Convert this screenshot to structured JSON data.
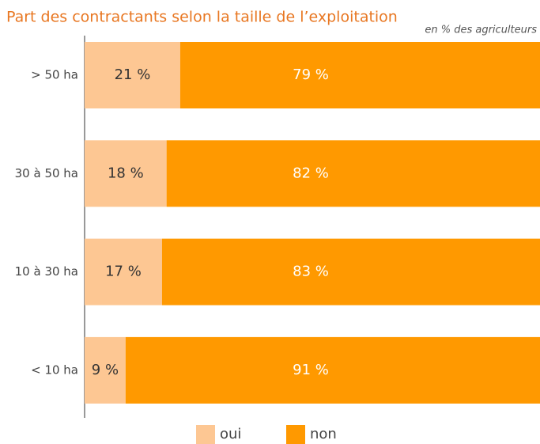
{
  "chart_data": {
    "type": "stacked-barh",
    "title": "Part des contractants selon la taille de l’exploitation",
    "subtitle": "en % des agriculteurs",
    "categories": [
      "> 50 ha",
      "30 à 50 ha",
      "10 à 30 ha",
      "< 10 ha"
    ],
    "xlim": [
      0,
      100
    ],
    "legend": "bottom",
    "series": [
      {
        "name": "oui",
        "color": "#fdc793",
        "values": [
          21,
          18,
          17,
          9
        ],
        "value_labels": [
          "21 %",
          "18 %",
          "17 %",
          "9 %"
        ]
      },
      {
        "name": "non",
        "color": "#ff9900",
        "values": [
          79,
          82,
          83,
          91
        ],
        "value_labels": [
          "79 %",
          "82 %",
          "83 %",
          "91 %"
        ]
      }
    ]
  }
}
